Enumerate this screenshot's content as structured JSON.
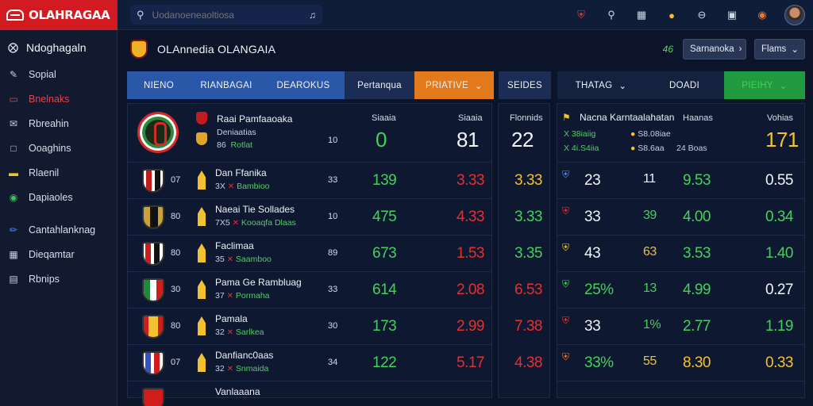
{
  "app": {
    "logo_text": "OLAHRAGAA",
    "search_placeholder": "Uodanoeneaoltiosa"
  },
  "top_icons": [
    "crest-icon",
    "search-icon",
    "calendar-icon",
    "notifications-icon",
    "settings-icon",
    "layout-icon",
    "alerts-icon"
  ],
  "sidebar": {
    "header": "Ndoghagaln",
    "items": [
      {
        "label": "Sopial",
        "icon": "pen-icon"
      },
      {
        "label": "Bnelnaks",
        "icon": "screen-icon",
        "active": true
      },
      {
        "label": "Rbreahin",
        "icon": "chat-icon"
      },
      {
        "label": "Ooaghins",
        "icon": "message-icon"
      },
      {
        "label": "Rlaenil",
        "icon": "card-icon"
      },
      {
        "label": "Dapiaoles",
        "icon": "shield-icon"
      },
      {
        "label": "Cantahlanknag",
        "icon": "edit-icon"
      },
      {
        "label": "Dieqamtar",
        "icon": "grid-icon"
      },
      {
        "label": "Rbnips",
        "icon": "list-icon"
      }
    ]
  },
  "main": {
    "title": "OLAnnedia OLANGAIA",
    "count": "46",
    "button_a": "Sarnanoka",
    "button_b": "Flams"
  },
  "tabs_left": [
    "NIENO",
    "RIANBAGAI",
    "DEAROKUS",
    "Pertanqua",
    "PRIATIVE"
  ],
  "tab_mid": "SEIDES",
  "tabs_right": [
    "THATAG",
    "DOADI",
    "PIEIHY"
  ],
  "left_panel": {
    "header": {
      "team_a": "Raai Pamfaaoaka",
      "team_b": "Deniaatias",
      "sub_num": "86",
      "sub_text": "Rotlat",
      "col1": "10",
      "label_a": "Siaaia",
      "label_b": "Siaaia",
      "val_a": "0",
      "val_b": "81"
    },
    "rows": [
      {
        "rank": "07",
        "name": "Dan Ffanika",
        "sub_num": "3X",
        "sub_text": "Bambioo",
        "col": "33",
        "g": "139",
        "r": "3.33",
        "y": "3.33"
      },
      {
        "rank": "80",
        "name": "Naeai Tie Sollades",
        "sub_num": "7X5",
        "sub_text": "Kooaqfa Dlaas",
        "col": "10",
        "g": "475",
        "r": "4.33",
        "y": "3.33"
      },
      {
        "rank": "80",
        "name": "Faclimaa",
        "sub_num": "35",
        "sub_text": "Saamboo",
        "col": "89",
        "g": "673",
        "r": "1.53",
        "y": "3.35"
      },
      {
        "rank": "30",
        "name": "Pama Ge Rambluag",
        "sub_num": "37",
        "sub_text": "Pormaha",
        "col": "33",
        "g": "614",
        "r": "2.08",
        "y": "6.53"
      },
      {
        "rank": "80",
        "name": "Pamala",
        "sub_num": "32",
        "sub_text": "Sarlkea",
        "col": "30",
        "g": "173",
        "r": "2.99",
        "y": "7.38"
      },
      {
        "rank": "07",
        "name": "Danfianc0aas",
        "sub_num": "32",
        "sub_text": "Snmaida",
        "col": "34",
        "g": "122",
        "r": "5.17",
        "y": "4.38"
      },
      {
        "rank": "",
        "name": "Vanlaaana",
        "sub_num": "",
        "sub_text": "",
        "col": "",
        "g": "",
        "r": "",
        "y": ""
      }
    ]
  },
  "mid_panel": {
    "header_label": "Flonnids",
    "header_val": "22"
  },
  "right_panel": {
    "header": {
      "title": "Nacna Karntaalahatan",
      "line1_a": "X 38iaiig",
      "line1_b": "S8.08iae",
      "line2_a": "X 4i.S4iia",
      "line2_b": "S8.6aa",
      "line2_c": "24 Boas",
      "label_a": "Haanas",
      "label_b": "Vohias",
      "val": "171"
    },
    "rows": [
      {
        "a": "23",
        "b": "11",
        "c": "9.53",
        "d": "0.55"
      },
      {
        "a": "33",
        "b": "39",
        "c": "4.00",
        "d": "0.34"
      },
      {
        "a": "43",
        "b": "63",
        "c": "3.53",
        "d": "1.40"
      },
      {
        "a": "25%",
        "b": "13",
        "c": "4.99",
        "d": "0.27"
      },
      {
        "a": "33",
        "b": "1%",
        "c": "2.77",
        "d": "1.19"
      },
      {
        "a": "33%",
        "b": "55",
        "c": "8.30",
        "d": "0.33"
      }
    ]
  }
}
